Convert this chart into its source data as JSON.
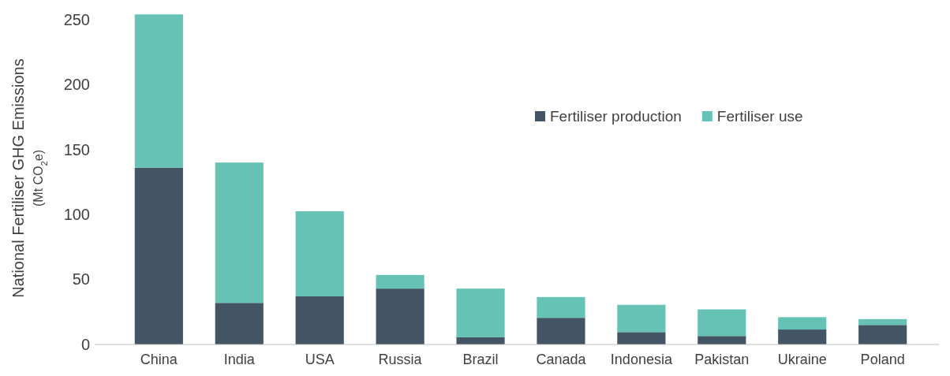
{
  "chart_data": {
    "type": "bar",
    "stacked": true,
    "ylabel": "National Fertiliser GHG Emissions\n(Mt CO$_{2}$e)",
    "categories": [
      "China",
      "India",
      "USA",
      "Russia",
      "Brazil",
      "Canada",
      "Indonesia",
      "Pakistan",
      "Ukraine",
      "Poland"
    ],
    "series": [
      {
        "name": "Fertiliser production",
        "color": "#435564",
        "values": [
          136,
          32,
          37,
          43,
          5.5,
          20.5,
          9.5,
          6.5,
          11.5,
          15
        ]
      },
      {
        "name": "Fertiliser use",
        "color": "#66c2b4",
        "values": [
          118,
          108,
          65.5,
          10.5,
          37.5,
          16,
          21,
          20.5,
          9.5,
          4.5
        ]
      }
    ],
    "ylim": [
      0,
      256
    ],
    "yticks": [
      0,
      50,
      100,
      150,
      200,
      250
    ],
    "grid": false,
    "legend": "top right"
  }
}
